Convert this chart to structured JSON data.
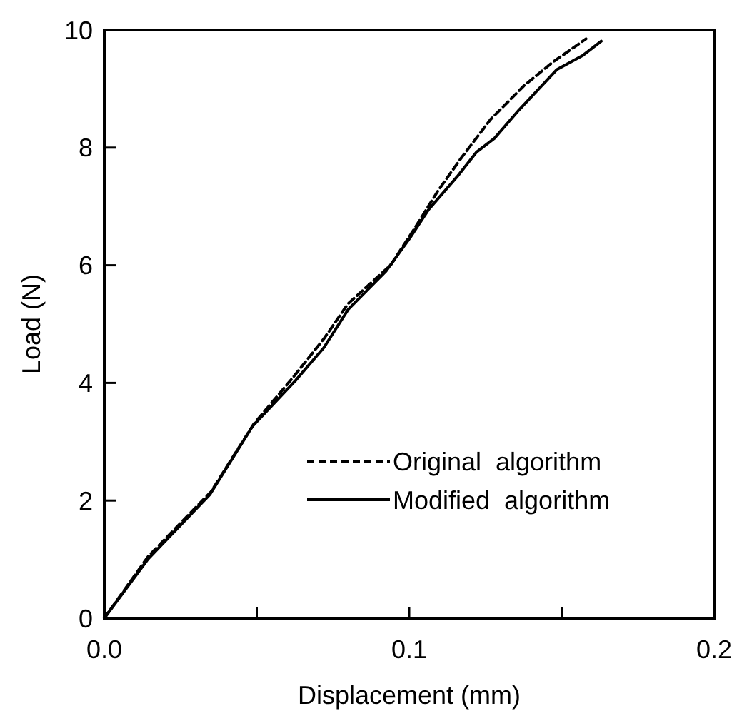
{
  "chart_data": {
    "type": "line",
    "xlabel": "Displacement  (mm)",
    "ylabel": "Load (N)",
    "xlim": [
      0,
      0.2
    ],
    "ylim": [
      0,
      10
    ],
    "xticks": [
      {
        "value": 0,
        "label": "0.0"
      },
      {
        "value": 0.05,
        "label": null
      },
      {
        "value": 0.1,
        "label": "0.1"
      },
      {
        "value": 0.15,
        "label": null
      },
      {
        "value": 0.2,
        "label": "0.2"
      }
    ],
    "yticks": [
      0,
      2,
      4,
      6,
      8,
      10
    ],
    "legend": "bottom right",
    "grid": false,
    "marker": "none",
    "series": [
      {
        "name": "Original  algorithm",
        "color": "#000000",
        "line_style": "dashed",
        "x": [
          0,
          0.0144,
          0.035,
          0.049,
          0.062,
          0.072,
          0.08,
          0.0939,
          0.1017,
          0.1095,
          0.1173,
          0.1267,
          0.1376,
          0.147,
          0.158
        ],
        "values": [
          0,
          1.05,
          2.15,
          3.3,
          4.1,
          4.75,
          5.35,
          6.0,
          6.62,
          7.27,
          7.84,
          8.48,
          9.05,
          9.45,
          9.85
        ]
      },
      {
        "name": "Modified  algorithm",
        "color": "#000000",
        "line_style": "solid",
        "x": [
          0,
          0.0144,
          0.0346,
          0.0487,
          0.0627,
          0.072,
          0.08,
          0.0924,
          0.1002,
          0.1064,
          0.1158,
          0.122,
          0.128,
          0.136,
          0.1485,
          0.157,
          0.163
        ],
        "values": [
          0,
          1.01,
          2.1,
          3.27,
          4.04,
          4.6,
          5.25,
          5.9,
          6.46,
          6.95,
          7.51,
          7.92,
          8.16,
          8.64,
          9.33,
          9.57,
          9.81
        ]
      }
    ]
  }
}
